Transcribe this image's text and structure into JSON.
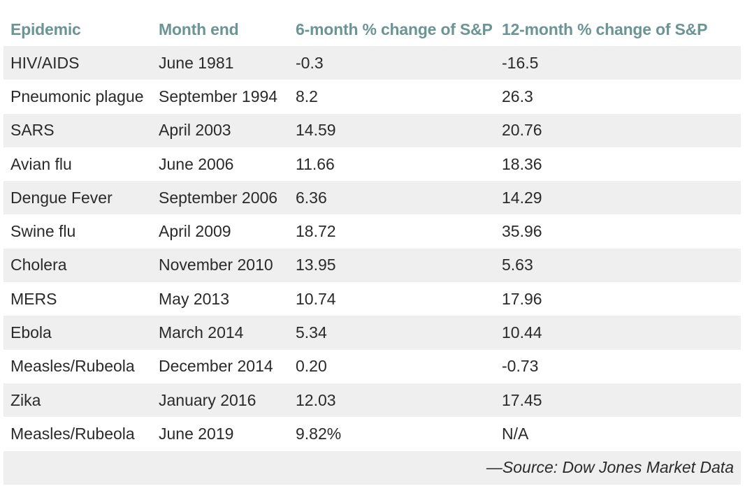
{
  "table": {
    "headers": [
      "Epidemic",
      "Month end",
      "6-month % change of S&P",
      "12-month % change of S&P"
    ],
    "rows": [
      [
        "HIV/AIDS",
        "June 1981",
        "-0.3",
        "-16.5"
      ],
      [
        "Pneumonic plague",
        "September 1994",
        "8.2",
        "26.3"
      ],
      [
        "SARS",
        "April 2003",
        "14.59",
        "20.76"
      ],
      [
        "Avian flu",
        "June 2006",
        "11.66",
        "18.36"
      ],
      [
        "Dengue Fever",
        "September 2006",
        "6.36",
        "14.29"
      ],
      [
        "Swine flu",
        "April 2009",
        "18.72",
        "35.96"
      ],
      [
        "Cholera",
        "November 2010",
        "13.95",
        "5.63"
      ],
      [
        "MERS",
        "May 2013",
        "10.74",
        "17.96"
      ],
      [
        "Ebola",
        "March 2014",
        "5.34",
        "10.44"
      ],
      [
        "Measles/Rubeola",
        "December 2014",
        "0.20",
        "-0.73"
      ],
      [
        "Zika",
        "January 2016",
        "12.03",
        "17.45"
      ],
      [
        "Measles/Rubeola",
        "June 2019",
        "9.82%",
        "N/A"
      ]
    ],
    "source": "—Source: Dow Jones Market Data"
  },
  "colors": {
    "header_text": "#6b9494",
    "stripe": "#efefef",
    "body_text": "#2a2a2a"
  }
}
